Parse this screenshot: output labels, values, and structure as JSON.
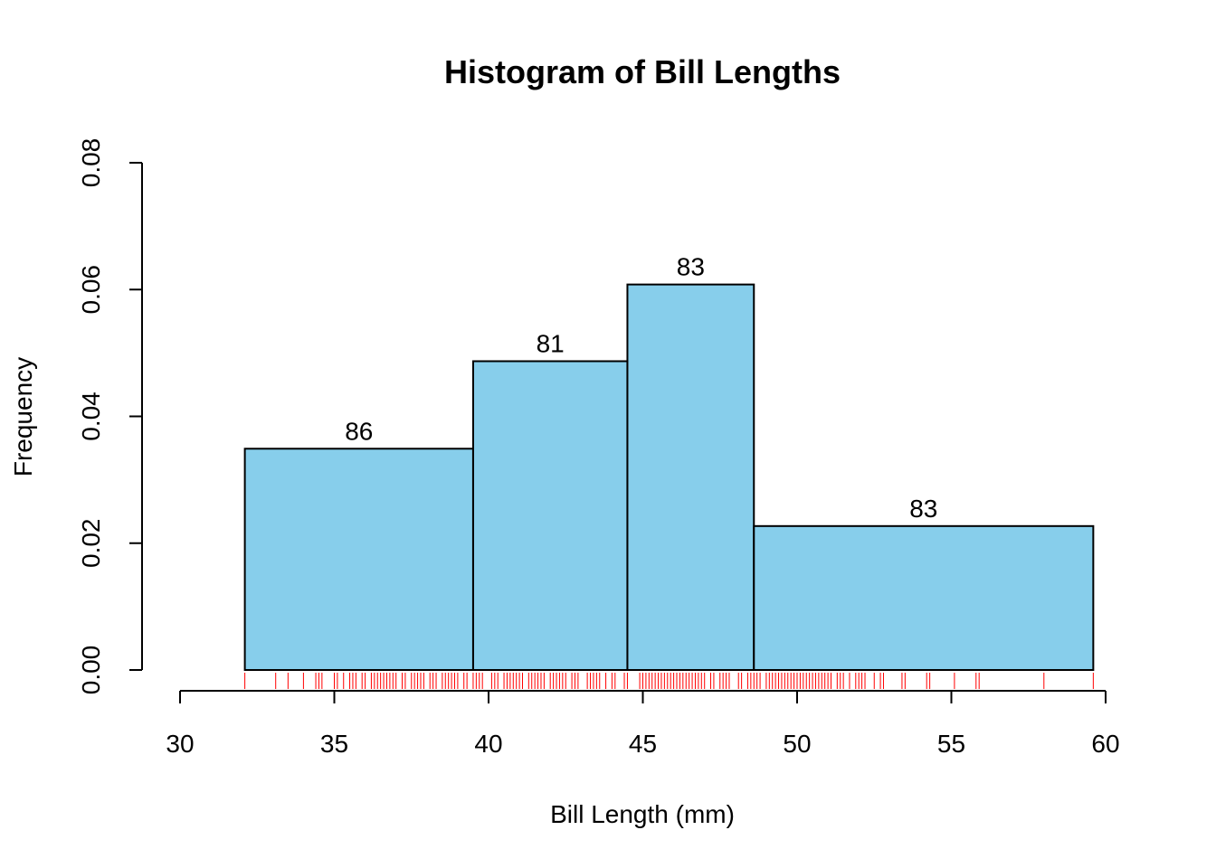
{
  "chart_data": {
    "type": "bar",
    "title": "Histogram of Bill Lengths",
    "xlabel": "Bill Length (mm)",
    "ylabel": "Frequency",
    "xlim": [
      30,
      60
    ],
    "ylim": [
      0,
      0.08
    ],
    "x_ticks": [
      "30",
      "35",
      "40",
      "45",
      "50",
      "55",
      "60"
    ],
    "y_ticks": [
      "0.00",
      "0.02",
      "0.04",
      "0.06",
      "0.08"
    ],
    "bar_color": "#87CEEB",
    "rug_color": "#FF0000",
    "grid": false,
    "bins": [
      {
        "start": 32.1,
        "end": 39.5,
        "density": 0.0349,
        "count_label": "86"
      },
      {
        "start": 39.5,
        "end": 44.5,
        "density": 0.0487,
        "count_label": "81"
      },
      {
        "start": 44.5,
        "end": 48.6,
        "density": 0.0608,
        "count_label": "83"
      },
      {
        "start": 48.6,
        "end": 59.6,
        "density": 0.0227,
        "count_label": "83"
      }
    ],
    "rug_values": [
      32.1,
      33.1,
      33.5,
      34.0,
      34.4,
      34.5,
      34.6,
      35.0,
      35.1,
      35.3,
      35.5,
      35.6,
      35.7,
      35.9,
      36.0,
      36.2,
      36.3,
      36.4,
      36.5,
      36.6,
      36.7,
      36.8,
      36.9,
      37.0,
      37.2,
      37.3,
      37.5,
      37.6,
      37.7,
      37.8,
      37.9,
      38.1,
      38.2,
      38.3,
      38.5,
      38.6,
      38.7,
      38.8,
      38.9,
      39.0,
      39.2,
      39.3,
      39.5,
      39.6,
      39.7,
      39.8,
      40.1,
      40.2,
      40.3,
      40.5,
      40.6,
      40.7,
      40.8,
      40.9,
      41.0,
      41.1,
      41.3,
      41.4,
      41.5,
      41.6,
      41.7,
      41.8,
      42.0,
      42.1,
      42.2,
      42.3,
      42.4,
      42.5,
      42.7,
      42.8,
      42.9,
      43.2,
      43.3,
      43.4,
      43.5,
      43.6,
      43.8,
      44.0,
      44.1,
      44.4,
      44.5,
      44.9,
      45.0,
      45.1,
      45.2,
      45.3,
      45.4,
      45.5,
      45.6,
      45.7,
      45.8,
      45.9,
      46.0,
      46.1,
      46.2,
      46.3,
      46.4,
      46.5,
      46.6,
      46.7,
      46.8,
      46.9,
      47.0,
      47.2,
      47.3,
      47.5,
      47.6,
      47.7,
      47.8,
      48.1,
      48.2,
      48.4,
      48.5,
      48.6,
      48.7,
      48.8,
      49.0,
      49.1,
      49.2,
      49.3,
      49.4,
      49.5,
      49.6,
      49.7,
      49.8,
      49.9,
      50.0,
      50.1,
      50.2,
      50.3,
      50.4,
      50.5,
      50.6,
      50.7,
      50.8,
      50.9,
      51.0,
      51.1,
      51.3,
      51.4,
      51.5,
      51.7,
      51.9,
      52.0,
      52.1,
      52.2,
      52.5,
      52.7,
      52.8,
      53.4,
      53.5,
      54.2,
      54.3,
      55.1,
      55.8,
      55.9,
      58.0,
      59.6
    ]
  }
}
